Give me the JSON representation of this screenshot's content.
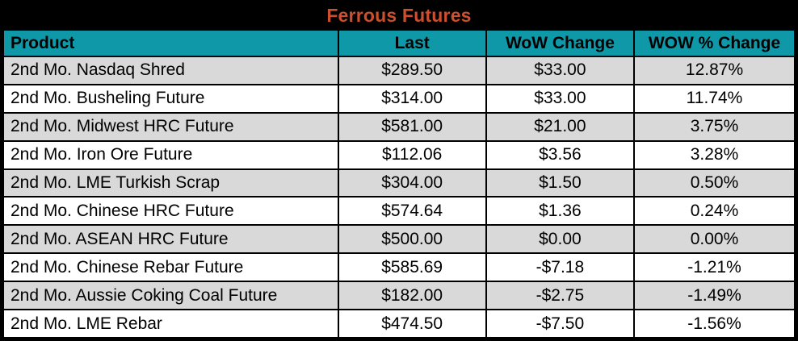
{
  "title": "Ferrous Futures",
  "colors": {
    "title_bg": "#000000",
    "title_text": "#CC4F2E",
    "header_bg": "#0E98A8",
    "header_text": "#000000",
    "row_bg": "#FFFFFF",
    "row_alt_bg": "#D9D9D9",
    "border": "#000000"
  },
  "chart_data": {
    "type": "table",
    "title": "Ferrous Futures",
    "columns": [
      "Product",
      "Last",
      "WoW Change",
      "WOW % Change"
    ],
    "rows": [
      [
        "2nd Mo. Nasdaq Shred",
        "$289.50",
        "$33.00",
        "12.87%"
      ],
      [
        "2nd Mo. Busheling Future",
        "$314.00",
        "$33.00",
        "11.74%"
      ],
      [
        "2nd Mo. Midwest HRC Future",
        "$581.00",
        "$21.00",
        "3.75%"
      ],
      [
        "2nd Mo. Iron Ore Future",
        "$112.06",
        "$3.56",
        "3.28%"
      ],
      [
        "2nd Mo. LME Turkish Scrap",
        "$304.00",
        "$1.50",
        "0.50%"
      ],
      [
        "2nd Mo. Chinese HRC Future",
        "$574.64",
        "$1.36",
        "0.24%"
      ],
      [
        "2nd Mo. ASEAN HRC Future",
        "$500.00",
        "$0.00",
        "0.00%"
      ],
      [
        "2nd Mo. Chinese Rebar Future",
        "$585.69",
        "-$7.18",
        "-1.21%"
      ],
      [
        "2nd Mo. Aussie Coking Coal Future",
        "$182.00",
        "-$2.75",
        "-1.49%"
      ],
      [
        "2nd Mo. LME Rebar",
        "$474.50",
        "-$7.50",
        "-1.56%"
      ]
    ]
  }
}
